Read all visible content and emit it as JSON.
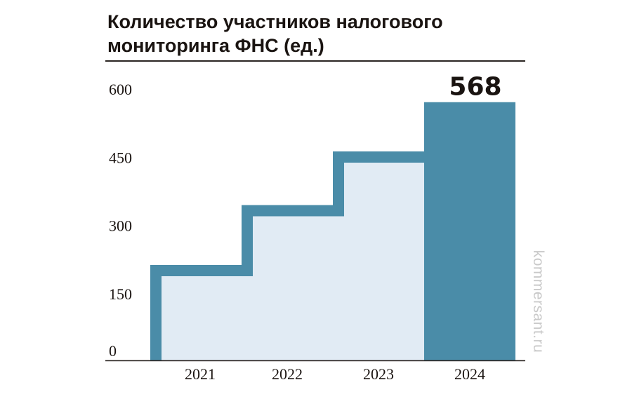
{
  "header": {
    "title_line1": "Количество участников налогового",
    "title_line2": "мониторинга ФНС (ед.)"
  },
  "watermark": "kommersant.ru",
  "colors": {
    "outline": "#4a8ca8",
    "fill_light": "#e1ebf4",
    "highlight_bar": "#4a8ca8",
    "text": "#1a1411"
  },
  "chart_data": {
    "type": "bar",
    "title": "Количество участников налогового мониторинга ФНС (ед.)",
    "categories": [
      "2021",
      "2022",
      "2023",
      "2024"
    ],
    "values": [
      185,
      317,
      435,
      568
    ],
    "highlighted_index": 3,
    "data_labels": [
      {
        "index": 3,
        "text": "568"
      }
    ],
    "ylim": [
      0,
      600
    ],
    "yticks": [
      "0",
      "150",
      "300",
      "450",
      "600"
    ],
    "grid": false,
    "xlabel": "",
    "ylabel": ""
  }
}
